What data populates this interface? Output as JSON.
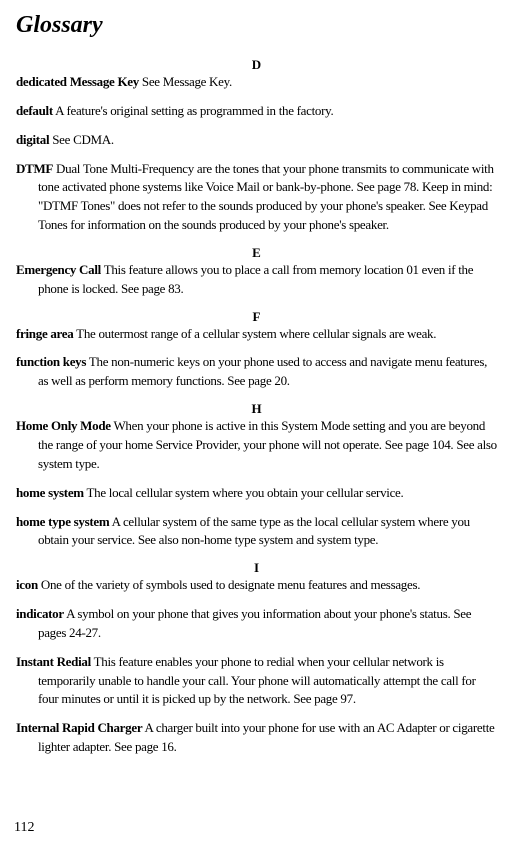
{
  "title": "Glossary",
  "page_number": "112",
  "sections": [
    {
      "letter": "D",
      "entries": [
        {
          "term": "dedicated Message Key",
          "def": " See Message Key."
        },
        {
          "term": "default",
          "def": "  A feature's original setting as programmed in the factory."
        },
        {
          "term": "digital",
          "def": " See CDMA."
        },
        {
          "term": "DTMF",
          "def": " Dual Tone Multi-Frequency are the tones that your phone transmits to communicate with tone activated phone systems like Voice Mail or bank-by-phone. See page 78. Keep in mind: \"DTMF Tones\" does not refer to the sounds produced by your phone's speaker. See Keypad Tones for information on the sounds produced by your phone's speaker."
        }
      ]
    },
    {
      "letter": "E",
      "entries": [
        {
          "term": "Emergency Call",
          "def": "  This feature allows you to place a call from memory location 01 even if the phone is locked. See page 83."
        }
      ]
    },
    {
      "letter": "F",
      "entries": [
        {
          "term": "fringe area",
          "def": "  The outermost range of a cellular system where cellular signals are weak."
        },
        {
          "term": "function keys",
          "def": " The non-numeric keys on your phone used to access and navigate menu features, as well as perform memory functions. See page 20."
        }
      ]
    },
    {
      "letter": "H",
      "entries": [
        {
          "term": "Home Only Mode",
          "def": " When your phone is active in this System Mode setting and you are beyond the range of your home Service Provider, your phone will not operate. See page 104. See also system type."
        },
        {
          "term": "home system",
          "def": " The local cellular system where you obtain your cellular service."
        },
        {
          "term": "home type system",
          "def": " A cellular system of the same type as the local cellular system where you obtain your service. See also non-home type system and system type."
        }
      ]
    },
    {
      "letter": "I",
      "entries": [
        {
          "term": "icon",
          "def": " One of the variety of symbols used to designate menu features and messages."
        },
        {
          "term": "indicator",
          "def": "  A symbol on your phone that gives you information about your phone's status. See pages 24-27."
        },
        {
          "term": "Instant Redial",
          "def": " This feature enables your phone to redial when your cellular network is temporarily unable to handle your call. Your phone will automatically attempt the call for four minutes or until it is picked up by the network. See page 97."
        },
        {
          "term": "Internal Rapid Charger",
          "def": " A charger built into your phone for use with an AC Adapter or cigarette lighter adapter. See page 16."
        }
      ]
    }
  ]
}
